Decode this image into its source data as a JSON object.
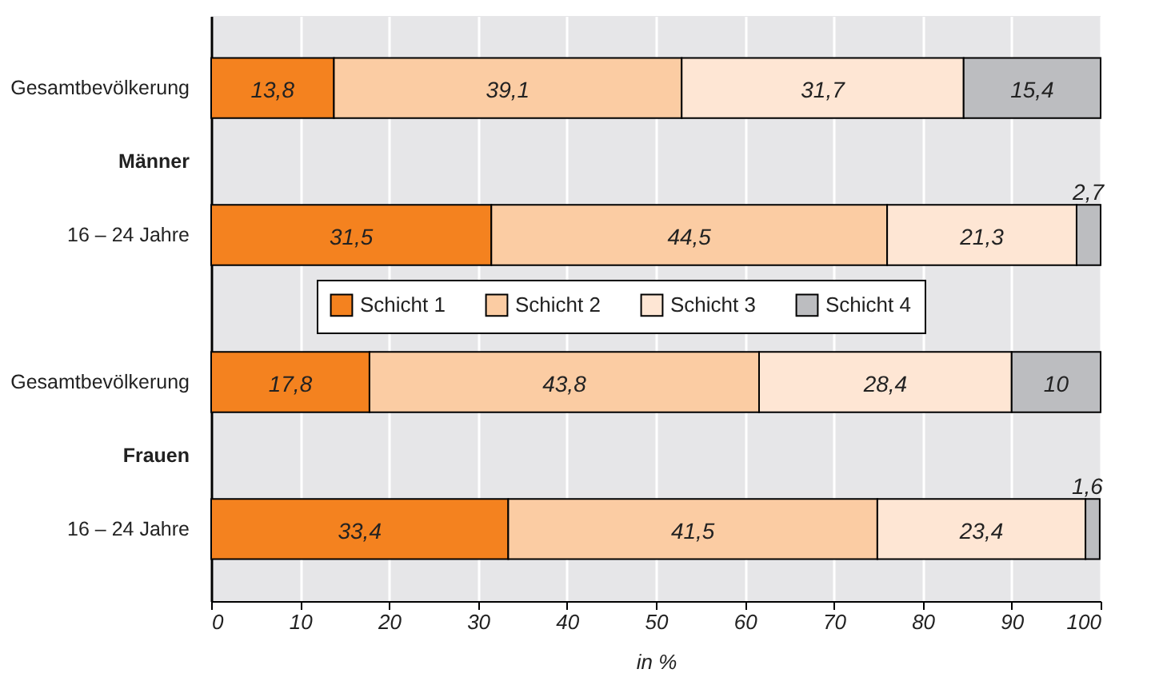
{
  "chart_data": {
    "type": "bar",
    "orientation": "horizontal",
    "stacked": true,
    "xlabel": "in %",
    "categories": [
      "Gesamtbevölkerung",
      "Männer",
      "16 – 24 Jahre",
      null,
      "Gesamtbevölkerung",
      "Frauen",
      "16 – 24 Jahre"
    ],
    "xlim": [
      0,
      100
    ],
    "xticks": [
      0,
      10,
      20,
      30,
      40,
      50,
      60,
      70,
      80,
      90,
      100
    ],
    "grid": "x",
    "legend": "center",
    "series": [
      {
        "name": "Schicht 1",
        "color": "#f4821f",
        "values": [
          13.8,
          null,
          31.5,
          null,
          17.8,
          null,
          33.4
        ],
        "value_labels": [
          "13,8",
          null,
          "31,5",
          null,
          "17,8",
          null,
          "33,4"
        ]
      },
      {
        "name": "Schicht 2",
        "color": "#fbcca3",
        "values": [
          39.1,
          null,
          44.5,
          null,
          43.8,
          null,
          41.5
        ],
        "value_labels": [
          "39,1",
          null,
          "44,5",
          null,
          "43,8",
          null,
          "41,5"
        ]
      },
      {
        "name": "Schicht 3",
        "color": "#fee6d4",
        "values": [
          31.7,
          null,
          21.3,
          null,
          28.4,
          null,
          23.4
        ],
        "value_labels": [
          "31,7",
          null,
          "21,3",
          null,
          "28,4",
          null,
          "23,4"
        ]
      },
      {
        "name": "Schicht 4",
        "color": "#bcbdc0",
        "values": [
          15.4,
          null,
          2.7,
          null,
          10,
          null,
          1.6
        ],
        "value_labels": [
          "15,4",
          null,
          "2,7",
          null,
          "10",
          null,
          "1,6"
        ]
      }
    ]
  }
}
